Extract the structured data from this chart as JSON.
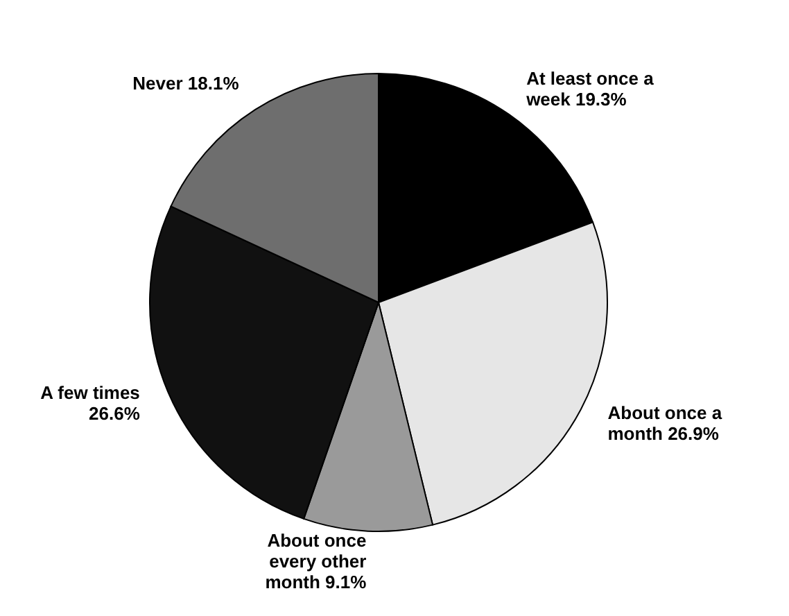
{
  "chart_data": {
    "type": "pie",
    "categories": [
      "At least once a week",
      "About once a month",
      "About once every other month",
      "A few times",
      "Never"
    ],
    "values": [
      19.3,
      26.9,
      9.1,
      26.6,
      18.1
    ],
    "value_labels": [
      "19.3%",
      "26.9%",
      "9.1%",
      "26.6%",
      "18.1%"
    ],
    "colors": [
      "#000000",
      "#e6e6e6",
      "#9a9a9a",
      "#111111",
      "#6e6e6e"
    ]
  }
}
